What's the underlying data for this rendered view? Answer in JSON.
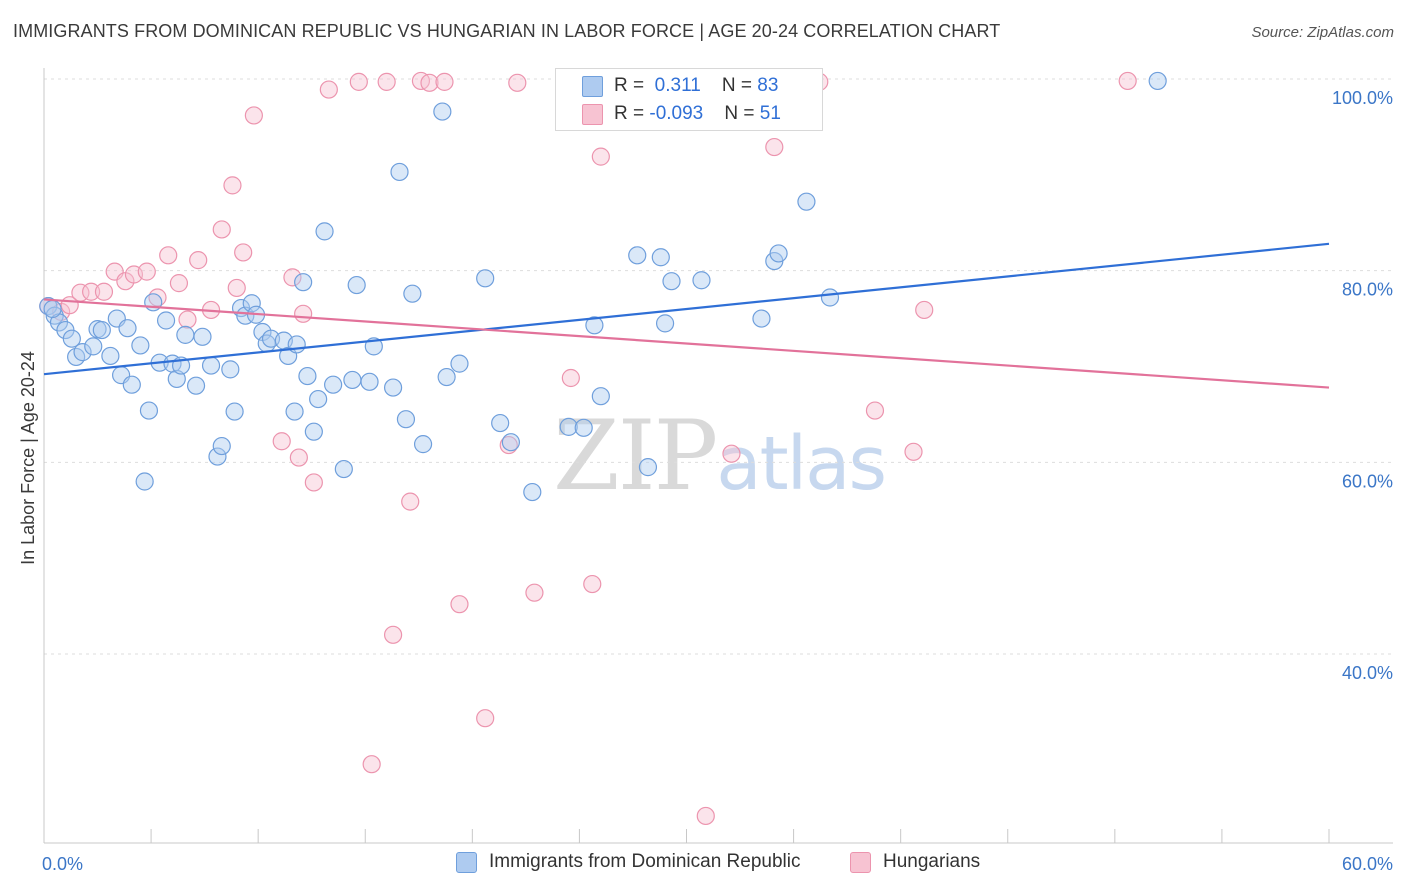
{
  "title": "IMMIGRANTS FROM DOMINICAN REPUBLIC VS HUNGARIAN IN LABOR FORCE | AGE 20-24 CORRELATION CHART",
  "source": "Source: ZipAtlas.com",
  "watermark": {
    "part1": "ZIP",
    "part2": "atlas"
  },
  "colors": {
    "blue_fill": "#aecbf0",
    "blue_stroke": "#6f9fdc",
    "blue_line": "#2f6fd6",
    "pink_fill": "#f7c3d2",
    "pink_stroke": "#ec94ae",
    "pink_line": "#e2729a",
    "tick_text": "#3b76c7",
    "grid": "#dddddd"
  },
  "legend_top": {
    "rows": [
      {
        "r_label": "R = ",
        "r_value": " 0.311",
        "n_label": "N = ",
        "n_value": "83",
        "color": "blue"
      },
      {
        "r_label": "R = ",
        "r_value": "-0.093",
        "n_label": "N = ",
        "n_value": "51",
        "color": "pink"
      }
    ]
  },
  "legend_bottom": [
    "Immigrants from Dominican Republic",
    "Hungarians"
  ],
  "chart_data": {
    "type": "scatter",
    "title": "IMMIGRANTS FROM DOMINICAN REPUBLIC VS HUNGARIAN IN LABOR FORCE | AGE 20-24 CORRELATION CHART",
    "xlabel": "",
    "ylabel": "In Labor Force | Age 20-24",
    "xlim": [
      0,
      60
    ],
    "ylim": [
      20,
      102
    ],
    "x_tick_labels": [
      "0.0%",
      "60.0%"
    ],
    "y_ticks": [
      40,
      60,
      80,
      100
    ],
    "y_tick_labels": [
      "40.0%",
      "60.0%",
      "80.0%",
      "100.0%"
    ],
    "grid": true,
    "series": [
      {
        "name": "Immigrants from Dominican Republic",
        "color": "#aecbf0",
        "trend": {
          "x": [
            0,
            60
          ],
          "y": [
            69.2,
            82.8
          ]
        },
        "points": [
          [
            0.2,
            76.3
          ],
          [
            0.5,
            75.3
          ],
          [
            0.7,
            74.6
          ],
          [
            1.0,
            73.8
          ],
          [
            1.3,
            72.9
          ],
          [
            1.5,
            71.0
          ],
          [
            1.8,
            71.5
          ],
          [
            2.3,
            72.1
          ],
          [
            2.5,
            73.9
          ],
          [
            2.7,
            73.8
          ],
          [
            3.1,
            71.1
          ],
          [
            3.4,
            75.0
          ],
          [
            3.6,
            69.1
          ],
          [
            3.9,
            74.0
          ],
          [
            4.1,
            68.1
          ],
          [
            4.5,
            72.2
          ],
          [
            4.7,
            58.0
          ],
          [
            4.9,
            65.4
          ],
          [
            5.1,
            76.7
          ],
          [
            5.4,
            70.4
          ],
          [
            5.7,
            74.8
          ],
          [
            6.0,
            70.3
          ],
          [
            6.2,
            68.7
          ],
          [
            6.4,
            70.1
          ],
          [
            6.6,
            73.3
          ],
          [
            7.1,
            68.0
          ],
          [
            7.4,
            73.1
          ],
          [
            7.8,
            70.1
          ],
          [
            8.1,
            60.6
          ],
          [
            8.3,
            61.7
          ],
          [
            8.7,
            69.7
          ],
          [
            8.9,
            65.3
          ],
          [
            9.2,
            76.1
          ],
          [
            9.4,
            75.3
          ],
          [
            9.7,
            76.6
          ],
          [
            9.9,
            75.4
          ],
          [
            10.2,
            73.6
          ],
          [
            10.4,
            72.4
          ],
          [
            10.6,
            72.9
          ],
          [
            11.2,
            72.7
          ],
          [
            11.4,
            71.1
          ],
          [
            11.7,
            65.3
          ],
          [
            11.8,
            72.3
          ],
          [
            12.1,
            78.8
          ],
          [
            12.3,
            69.0
          ],
          [
            12.6,
            63.2
          ],
          [
            12.8,
            66.6
          ],
          [
            13.1,
            84.1
          ],
          [
            13.5,
            68.1
          ],
          [
            14.0,
            59.3
          ],
          [
            14.4,
            68.6
          ],
          [
            14.6,
            78.5
          ],
          [
            15.2,
            68.4
          ],
          [
            15.4,
            72.1
          ],
          [
            16.3,
            67.8
          ],
          [
            16.6,
            90.3
          ],
          [
            16.9,
            64.5
          ],
          [
            17.2,
            77.6
          ],
          [
            17.7,
            61.9
          ],
          [
            18.6,
            96.6
          ],
          [
            18.8,
            68.9
          ],
          [
            19.4,
            70.3
          ],
          [
            20.6,
            79.2
          ],
          [
            21.3,
            64.1
          ],
          [
            21.8,
            62.1
          ],
          [
            22.8,
            56.9
          ],
          [
            24.5,
            63.7
          ],
          [
            25.2,
            63.6
          ],
          [
            25.7,
            74.3
          ],
          [
            26.0,
            66.9
          ],
          [
            27.7,
            81.6
          ],
          [
            28.2,
            59.5
          ],
          [
            28.8,
            81.4
          ],
          [
            29.0,
            74.5
          ],
          [
            29.3,
            78.9
          ],
          [
            30.7,
            79.0
          ],
          [
            33.5,
            75.0
          ],
          [
            34.1,
            81.0
          ],
          [
            34.3,
            81.8
          ],
          [
            35.6,
            87.2
          ],
          [
            36.7,
            77.2
          ],
          [
            52.0,
            99.8
          ],
          [
            0.4,
            76.0
          ]
        ]
      },
      {
        "name": "Hungarians",
        "color": "#f7c3d2",
        "trend": {
          "x": [
            0,
            60
          ],
          "y": [
            77.0,
            67.8
          ]
        },
        "points": [
          [
            0.2,
            76.3
          ],
          [
            0.8,
            75.7
          ],
          [
            1.2,
            76.4
          ],
          [
            1.7,
            77.7
          ],
          [
            2.2,
            77.8
          ],
          [
            2.8,
            77.8
          ],
          [
            3.3,
            79.9
          ],
          [
            3.8,
            78.9
          ],
          [
            4.2,
            79.6
          ],
          [
            4.8,
            79.9
          ],
          [
            5.3,
            77.2
          ],
          [
            5.8,
            81.6
          ],
          [
            6.3,
            78.7
          ],
          [
            6.7,
            74.9
          ],
          [
            7.2,
            81.1
          ],
          [
            7.8,
            75.9
          ],
          [
            8.3,
            84.3
          ],
          [
            8.8,
            88.9
          ],
          [
            9.0,
            78.2
          ],
          [
            9.3,
            81.9
          ],
          [
            9.8,
            96.2
          ],
          [
            11.1,
            62.2
          ],
          [
            11.6,
            79.3
          ],
          [
            11.9,
            60.5
          ],
          [
            12.1,
            75.5
          ],
          [
            12.6,
            57.9
          ],
          [
            13.3,
            98.9
          ],
          [
            14.7,
            99.7
          ],
          [
            15.3,
            28.5
          ],
          [
            16.0,
            99.7
          ],
          [
            16.3,
            42.0
          ],
          [
            17.1,
            55.9
          ],
          [
            17.6,
            99.8
          ],
          [
            18.0,
            99.6
          ],
          [
            18.7,
            99.7
          ],
          [
            19.4,
            45.2
          ],
          [
            20.6,
            33.3
          ],
          [
            21.7,
            61.8
          ],
          [
            22.1,
            99.6
          ],
          [
            22.9,
            46.4
          ],
          [
            24.6,
            68.8
          ],
          [
            25.6,
            47.3
          ],
          [
            26.0,
            91.9
          ],
          [
            30.9,
            23.1
          ],
          [
            32.1,
            60.9
          ],
          [
            34.1,
            92.9
          ],
          [
            36.2,
            99.7
          ],
          [
            38.8,
            65.4
          ],
          [
            40.6,
            61.1
          ],
          [
            41.1,
            75.9
          ],
          [
            50.6,
            99.8
          ]
        ]
      }
    ]
  }
}
